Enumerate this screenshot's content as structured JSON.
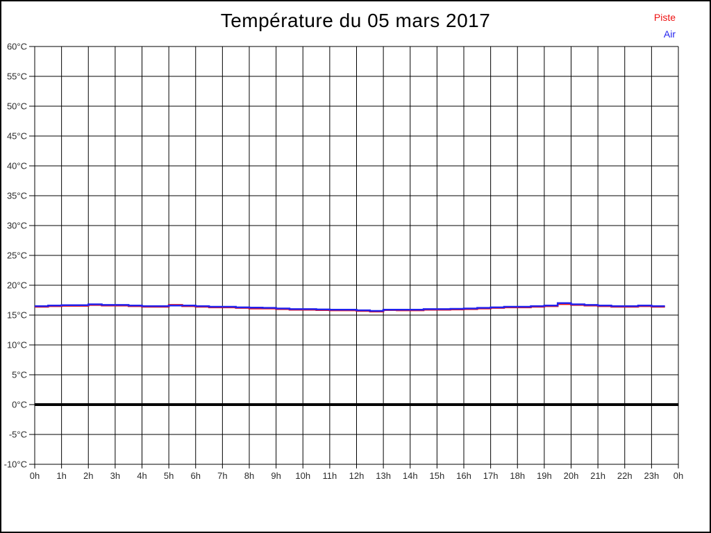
{
  "header": {
    "title": "Température du 05 mars 2017"
  },
  "legend": {
    "position": "top-right",
    "items": [
      {
        "label": "Piste",
        "color": "#ee1111"
      },
      {
        "label": "Air",
        "color": "#2222ee"
      }
    ]
  },
  "chart_data": {
    "type": "line",
    "title": "Température du 05 mars 2017",
    "xlabel": "",
    "ylabel": "",
    "xlim": [
      0,
      24
    ],
    "ylim": [
      -10,
      60
    ],
    "y_tick_step": 5,
    "grid": true,
    "zero_line": {
      "value": 0,
      "thick": true,
      "color": "#000000"
    },
    "legend_position": "top-right",
    "x_tick_labels": [
      "0h",
      "1h",
      "2h",
      "3h",
      "4h",
      "5h",
      "6h",
      "7h",
      "8h",
      "9h",
      "10h",
      "11h",
      "12h",
      "13h",
      "14h",
      "15h",
      "16h",
      "17h",
      "18h",
      "19h",
      "20h",
      "21h",
      "22h",
      "23h",
      "0h"
    ],
    "y_tick_labels": [
      "60°C",
      "55°C",
      "50°C",
      "45°C",
      "40°C",
      "35°C",
      "30°C",
      "25°C",
      "20°C",
      "15°C",
      "10°C",
      "5°C",
      "0°C",
      "-5°C",
      "-10°C"
    ],
    "x_unit": "hours",
    "y_unit": "°C",
    "x": [
      0,
      0.5,
      1,
      1.5,
      2,
      2.5,
      3,
      3.5,
      4,
      4.5,
      5,
      5.5,
      6,
      6.5,
      7,
      7.5,
      8,
      8.5,
      9,
      9.5,
      10,
      10.5,
      11,
      11.5,
      12,
      12.5,
      13,
      13.5,
      14,
      14.5,
      15,
      15.5,
      16,
      16.5,
      17,
      17.5,
      18,
      18.5,
      19,
      19.5,
      20,
      20.5,
      21,
      21.5,
      22,
      22.5,
      23,
      23.5
    ],
    "series": [
      {
        "name": "Piste",
        "color": "#ee1111",
        "values": [
          16.4,
          16.5,
          16.55,
          16.55,
          16.7,
          16.6,
          16.6,
          16.5,
          16.4,
          16.4,
          16.7,
          16.5,
          16.4,
          16.3,
          16.3,
          16.2,
          16.1,
          16.1,
          16.0,
          15.9,
          15.9,
          15.85,
          15.8,
          15.8,
          15.7,
          15.6,
          15.85,
          15.8,
          15.8,
          15.9,
          15.9,
          15.95,
          16.0,
          16.1,
          16.2,
          16.3,
          16.3,
          16.4,
          16.5,
          16.85,
          16.7,
          16.6,
          16.5,
          16.4,
          16.4,
          16.5,
          16.4,
          16.4
        ]
      },
      {
        "name": "Air",
        "color": "#2222ee",
        "values": [
          16.5,
          16.6,
          16.65,
          16.65,
          16.8,
          16.7,
          16.7,
          16.6,
          16.5,
          16.5,
          16.6,
          16.6,
          16.5,
          16.4,
          16.4,
          16.3,
          16.25,
          16.2,
          16.1,
          16.0,
          16.0,
          15.95,
          15.9,
          15.9,
          15.8,
          15.7,
          15.9,
          15.9,
          15.9,
          16.0,
          16.0,
          16.05,
          16.1,
          16.2,
          16.3,
          16.4,
          16.4,
          16.5,
          16.6,
          17.0,
          16.8,
          16.7,
          16.6,
          16.5,
          16.5,
          16.6,
          16.5,
          16.5
        ]
      }
    ]
  }
}
